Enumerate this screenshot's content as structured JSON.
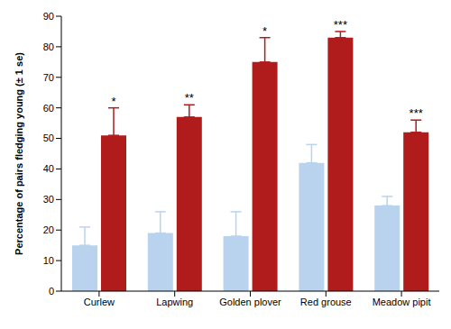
{
  "chart_data": {
    "type": "bar",
    "categories": [
      "Curlew",
      "Lapwing",
      "Golden plover",
      "Red grouse",
      "Meadow pipit"
    ],
    "series": [
      {
        "color": "#b9d3ee",
        "values": [
          15,
          19,
          18,
          42,
          28
        ],
        "errors": [
          6,
          7,
          8,
          6,
          3
        ]
      },
      {
        "color": "#b01c1c",
        "values": [
          51,
          57,
          75,
          83,
          52
        ],
        "errors": [
          9,
          4,
          8,
          2,
          4
        ]
      }
    ],
    "annotations": [
      "*",
      "**",
      "*",
      "***",
      "***"
    ],
    "y_label": "Percentage of pairs fledging young (± 1 se)",
    "ylim": [
      0,
      90
    ],
    "yticks": [
      0,
      10,
      20,
      30,
      40,
      50,
      60,
      70,
      80,
      90
    ],
    "grid": false
  }
}
